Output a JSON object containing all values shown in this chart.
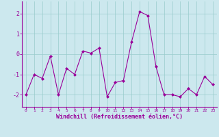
{
  "x": [
    0,
    1,
    2,
    3,
    4,
    5,
    6,
    7,
    8,
    9,
    10,
    11,
    12,
    13,
    14,
    15,
    16,
    17,
    18,
    19,
    20,
    21,
    22,
    23
  ],
  "y": [
    -2.0,
    -1.0,
    -1.2,
    -0.1,
    -2.0,
    -0.7,
    -1.0,
    0.15,
    0.05,
    0.3,
    -2.1,
    -1.4,
    -1.3,
    0.6,
    2.1,
    1.9,
    -0.6,
    -2.0,
    -2.0,
    -2.1,
    -1.7,
    -2.0,
    -1.1,
    -1.5
  ],
  "line_color": "#990099",
  "marker_color": "#990099",
  "bg_color": "#cce8ee",
  "grid_color": "#99cccc",
  "xlabel": "Windchill (Refroidissement éolien,°C)",
  "ylim": [
    -2.6,
    2.6
  ],
  "xlim": [
    -0.5,
    23.5
  ],
  "yticks": [
    -2,
    -1,
    0,
    1,
    2
  ],
  "xticks": [
    0,
    1,
    2,
    3,
    4,
    5,
    6,
    7,
    8,
    9,
    10,
    11,
    12,
    13,
    14,
    15,
    16,
    17,
    18,
    19,
    20,
    21,
    22,
    23
  ]
}
